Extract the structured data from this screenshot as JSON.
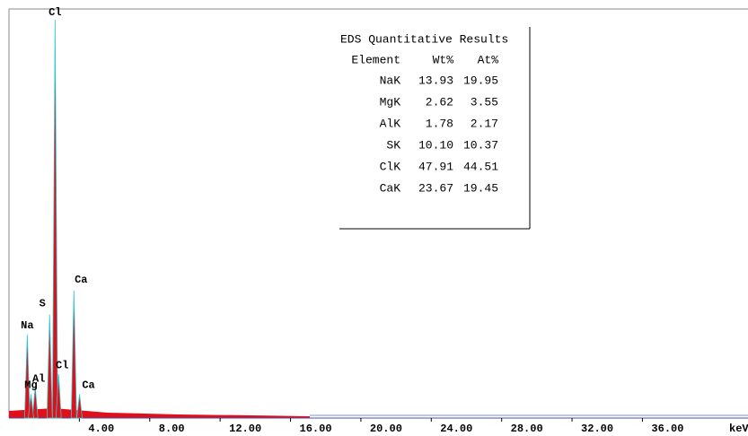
{
  "chart_data": {
    "type": "spectrum",
    "x_label": "keV",
    "xlim": [
      0,
      42
    ],
    "ylim": [
      0,
      100
    ],
    "xticks": [
      {
        "value": 4,
        "label": "4.00"
      },
      {
        "value": 8,
        "label": "8.00"
      },
      {
        "value": 12,
        "label": "12.00"
      },
      {
        "value": 16,
        "label": "16.00"
      },
      {
        "value": 20,
        "label": "20.00"
      },
      {
        "value": 24,
        "label": "24.00"
      },
      {
        "value": 28,
        "label": "28.00"
      },
      {
        "value": 32,
        "label": "32.00"
      },
      {
        "value": 36,
        "label": "36.00"
      }
    ],
    "peak_color": "#e0101a",
    "peak_edge_color": "#30c8d0",
    "peaks": [
      {
        "label": "Cl",
        "x": 2.62,
        "height": 100
      },
      {
        "label": "Na",
        "x": 1.04,
        "height": 21
      },
      {
        "label": "S",
        "x": 2.31,
        "height": 26
      },
      {
        "label": "Ca",
        "x": 3.69,
        "height": 32
      },
      {
        "label": "Al",
        "x": 1.49,
        "height": 8
      },
      {
        "label": "Mg",
        "x": 1.25,
        "height": 6
      },
      {
        "label": "Cl",
        "x": 2.82,
        "height": 11
      },
      {
        "label": "Ca",
        "x": 4.01,
        "height": 6
      }
    ]
  },
  "table": {
    "title": "EDS Quantitative Results",
    "header": [
      "Element",
      "Wt%",
      "At%"
    ],
    "rows": [
      [
        "NaK",
        "13.93",
        "19.95"
      ],
      [
        "MgK",
        "2.62",
        "3.55"
      ],
      [
        "AlK",
        "1.78",
        "2.17"
      ],
      [
        "SK",
        "10.10",
        "10.37"
      ],
      [
        "ClK",
        "47.91",
        "44.51"
      ],
      [
        "CaK",
        "23.67",
        "19.45"
      ]
    ]
  }
}
